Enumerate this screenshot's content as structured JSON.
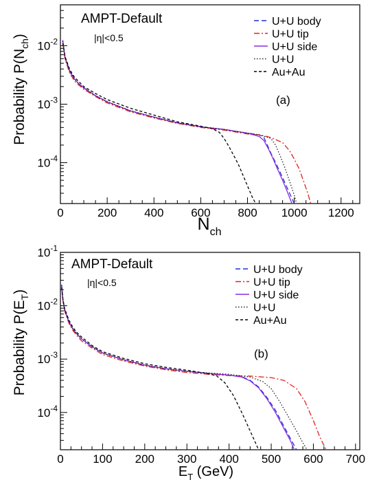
{
  "chart_data": [
    {
      "type": "line",
      "panel_label": "(a)",
      "annotations": {
        "model": "AMPT-Default",
        "cut": "|η|<0.5"
      },
      "xlabel_main": "N",
      "xlabel_sub": "ch",
      "ylabel_main": "Probability P(N",
      "ylabel_sub": "ch",
      "ylabel_end": ")",
      "xlim": [
        0,
        1280
      ],
      "ylim": [
        2e-05,
        0.05
      ],
      "yscale": "log",
      "x_ticks": [
        0,
        200,
        400,
        600,
        800,
        1000,
        1200
      ],
      "y_ticks": [
        {
          "value": 0.0001,
          "base": "10",
          "exp": "-4"
        },
        {
          "value": 0.001,
          "base": "10",
          "exp": "-3"
        },
        {
          "value": 0.01,
          "base": "10",
          "exp": "-2"
        }
      ],
      "legend_position": "top-right",
      "series": [
        {
          "name": "U+U body",
          "color": "#1f2fd6",
          "dash": "7,4",
          "x": [
            10,
            20,
            40,
            60,
            80,
            100,
            150,
            200,
            300,
            400,
            500,
            600,
            700,
            800,
            850,
            870,
            880,
            900,
            920,
            940,
            960,
            980,
            1000
          ],
          "y": [
            0.012,
            0.0062,
            0.0036,
            0.0027,
            0.0022,
            0.0019,
            0.0014,
            0.0011,
            0.00077,
            0.0006,
            0.00048,
            0.00041,
            0.00037,
            0.00032,
            0.0003,
            0.00027,
            0.00022,
            0.000145,
            0.0001,
            6.8e-05,
            4.5e-05,
            3e-05,
            2e-05
          ]
        },
        {
          "name": "U+U tip",
          "color": "#e02020",
          "dash": "8,3,2,3",
          "x": [
            10,
            20,
            40,
            60,
            80,
            100,
            150,
            200,
            300,
            400,
            500,
            600,
            700,
            800,
            850,
            900,
            950,
            980,
            1000,
            1020,
            1040,
            1060,
            1070
          ],
          "y": [
            0.011,
            0.0058,
            0.0034,
            0.0025,
            0.0021,
            0.0018,
            0.00135,
            0.00105,
            0.00074,
            0.00058,
            0.00047,
            0.0004,
            0.00036,
            0.00031,
            0.0003,
            0.00027,
            0.00022,
            0.00016,
            0.000115,
            8e-05,
            4.8e-05,
            2.8e-05,
            2e-05
          ]
        },
        {
          "name": "U+U side",
          "color": "#8a2be2",
          "dash": "",
          "x": [
            10,
            20,
            40,
            60,
            80,
            100,
            150,
            200,
            300,
            400,
            500,
            600,
            700,
            800,
            850,
            870,
            890,
            910,
            930,
            950,
            970,
            990
          ],
          "y": [
            0.0125,
            0.0063,
            0.0037,
            0.0027,
            0.0022,
            0.0019,
            0.0014,
            0.0011,
            0.00077,
            0.0006,
            0.00048,
            0.00041,
            0.00037,
            0.00032,
            0.00028,
            0.00024,
            0.00017,
            0.000115,
            7.5e-05,
            5e-05,
            3.2e-05,
            2e-05
          ]
        },
        {
          "name": "U+U",
          "color": "#202020",
          "dash": "1.5,2.5",
          "x": [
            10,
            20,
            40,
            60,
            80,
            100,
            150,
            200,
            300,
            400,
            500,
            600,
            700,
            800,
            850,
            900,
            920,
            940,
            960,
            980,
            1000,
            1010
          ],
          "y": [
            0.012,
            0.0062,
            0.0036,
            0.0027,
            0.0022,
            0.0019,
            0.0014,
            0.0011,
            0.00077,
            0.0006,
            0.00048,
            0.00041,
            0.00037,
            0.00032,
            0.0003,
            0.00026,
            0.0002,
            0.00013,
            8.2e-05,
            4.8e-05,
            2.8e-05,
            2e-05
          ]
        },
        {
          "name": "Au+Au",
          "color": "#000000",
          "dash": "4,3",
          "x": [
            10,
            20,
            40,
            60,
            80,
            100,
            150,
            200,
            300,
            400,
            500,
            600,
            650,
            680,
            700,
            720,
            740,
            760,
            780,
            800,
            820,
            835
          ],
          "y": [
            0.011,
            0.0065,
            0.0039,
            0.0029,
            0.0024,
            0.002,
            0.00152,
            0.0012,
            0.00085,
            0.00065,
            0.0005,
            0.00042,
            0.00038,
            0.00033,
            0.00026,
            0.00019,
            0.000135,
            9.5e-05,
            6.2e-05,
            4e-05,
            2.6e-05,
            2e-05
          ]
        }
      ]
    },
    {
      "type": "line",
      "panel_label": "(b)",
      "annotations": {
        "model": "AMPT-Default",
        "cut": "|η|<0.5"
      },
      "xlabel_main": "E",
      "xlabel_sub": "T",
      "xlabel_end": " (GeV)",
      "ylabel_main": "Probability P(E",
      "ylabel_sub": "T",
      "ylabel_end": ")",
      "xlim": [
        0,
        710
      ],
      "ylim": [
        2e-05,
        0.1
      ],
      "yscale": "log",
      "x_ticks": [
        0,
        100,
        200,
        300,
        400,
        500,
        600,
        700
      ],
      "y_ticks": [
        {
          "value": 0.0001,
          "base": "10",
          "exp": "-4"
        },
        {
          "value": 0.001,
          "base": "10",
          "exp": "-3"
        },
        {
          "value": 0.01,
          "base": "10",
          "exp": "-2"
        },
        {
          "value": 0.1,
          "base": "10",
          "exp": "-1"
        }
      ],
      "legend_position": "top-right",
      "series": [
        {
          "name": "U+U body",
          "color": "#1f2fd6",
          "dash": "7,4",
          "x": [
            3,
            6,
            10,
            20,
            30,
            40,
            50,
            75,
            100,
            150,
            200,
            250,
            300,
            350,
            400,
            430,
            450,
            470,
            490,
            510,
            530,
            545,
            560
          ],
          "y": [
            0.024,
            0.013,
            0.0085,
            0.005,
            0.0036,
            0.0029,
            0.0024,
            0.0017,
            0.0013,
            0.00097,
            0.00077,
            0.00066,
            0.00059,
            0.00054,
            0.0005,
            0.00047,
            0.0004,
            0.0003,
            0.00019,
            0.00011,
            5.5e-05,
            3.3e-05,
            2e-05
          ]
        },
        {
          "name": "U+U tip",
          "color": "#e02020",
          "dash": "8,3,2,3",
          "x": [
            3,
            6,
            10,
            20,
            30,
            40,
            50,
            75,
            100,
            150,
            200,
            250,
            300,
            350,
            400,
            450,
            500,
            530,
            560,
            580,
            600,
            615,
            630
          ],
          "y": [
            0.022,
            0.012,
            0.008,
            0.0047,
            0.0034,
            0.0027,
            0.0022,
            0.0016,
            0.00122,
            0.00092,
            0.00074,
            0.00063,
            0.00056,
            0.00052,
            0.00049,
            0.00048,
            0.00045,
            0.0004,
            0.00028,
            0.00016,
            7e-05,
            3.5e-05,
            2e-05
          ]
        },
        {
          "name": "U+U side",
          "color": "#8a2be2",
          "dash": "",
          "x": [
            3,
            6,
            10,
            20,
            30,
            40,
            50,
            75,
            100,
            150,
            200,
            250,
            300,
            350,
            400,
            430,
            450,
            470,
            490,
            510,
            530,
            545,
            555
          ],
          "y": [
            0.025,
            0.013,
            0.0085,
            0.005,
            0.0036,
            0.0029,
            0.0024,
            0.0017,
            0.0013,
            0.00097,
            0.00077,
            0.00066,
            0.00059,
            0.00054,
            0.0005,
            0.00046,
            0.00039,
            0.00029,
            0.00018,
            0.0001,
            5e-05,
            3e-05,
            2e-05
          ]
        },
        {
          "name": "U+U",
          "color": "#202020",
          "dash": "1.5,2.5",
          "x": [
            3,
            6,
            10,
            20,
            30,
            40,
            50,
            75,
            100,
            150,
            200,
            250,
            300,
            350,
            400,
            450,
            480,
            500,
            520,
            540,
            560,
            575,
            585
          ],
          "y": [
            0.024,
            0.013,
            0.0085,
            0.005,
            0.0036,
            0.0029,
            0.0024,
            0.0017,
            0.0013,
            0.00097,
            0.00077,
            0.00066,
            0.00059,
            0.00055,
            0.00052,
            0.00046,
            0.00038,
            0.00028,
            0.00016,
            8.5e-05,
            4.5e-05,
            2.7e-05,
            2e-05
          ]
        },
        {
          "name": "Au+Au",
          "color": "#000000",
          "dash": "4,3",
          "x": [
            3,
            6,
            10,
            20,
            30,
            40,
            50,
            75,
            100,
            150,
            200,
            250,
            300,
            340,
            370,
            390,
            410,
            430,
            445,
            460,
            470
          ],
          "y": [
            0.022,
            0.013,
            0.0089,
            0.0054,
            0.0039,
            0.0031,
            0.0026,
            0.0018,
            0.00138,
            0.00103,
            0.00082,
            0.0007,
            0.00062,
            0.00055,
            0.00049,
            0.00036,
            0.00021,
            0.0001,
            5.5e-05,
            3e-05,
            2e-05
          ]
        }
      ]
    }
  ]
}
